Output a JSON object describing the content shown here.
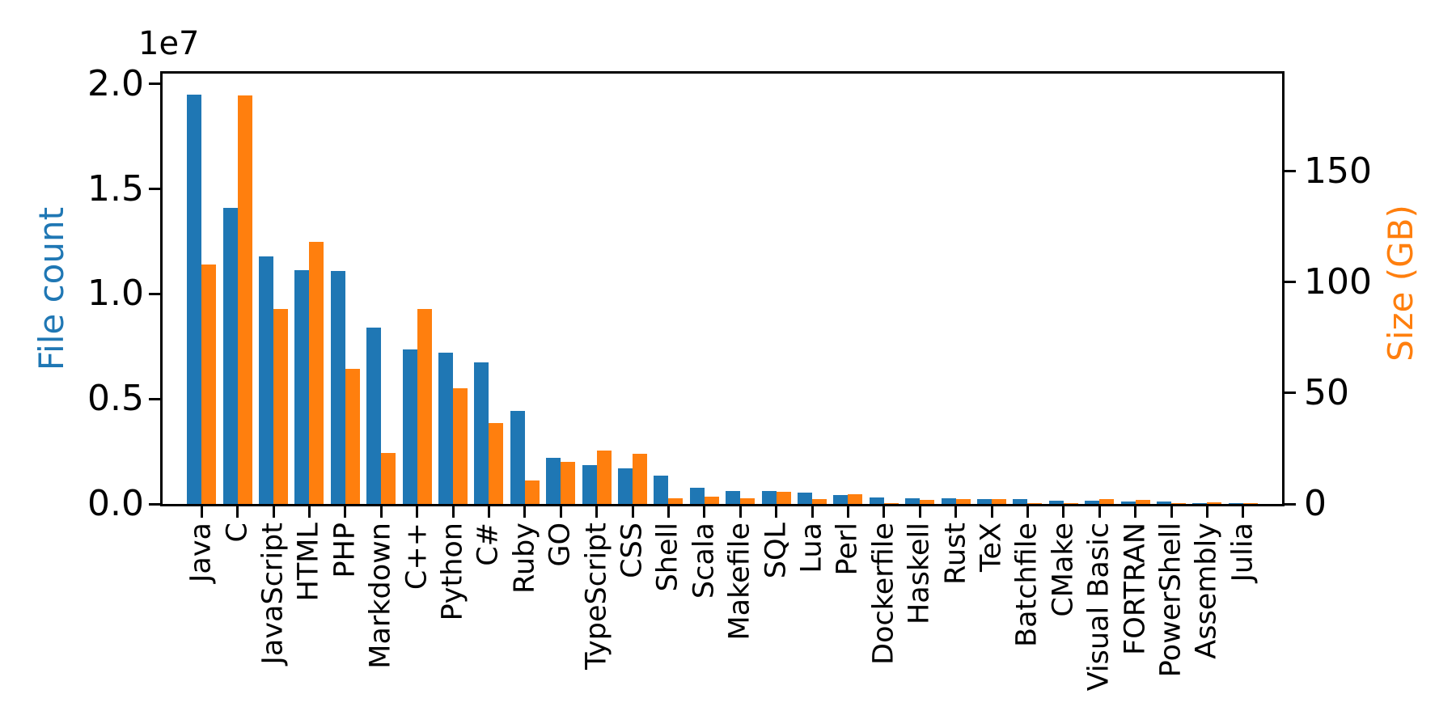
{
  "chart_data": {
    "type": "bar",
    "title": "",
    "description": "Dual-axis grouped bar chart showing file count (blue, left axis) and size in GB (orange, right axis) per programming language",
    "categories": [
      "Java",
      "C",
      "JavaScript",
      "HTML",
      "PHP",
      "Markdown",
      "C++",
      "Python",
      "C#",
      "Ruby",
      "GO",
      "TypeScript",
      "CSS",
      "Shell",
      "Scala",
      "Makefile",
      "SQL",
      "Lua",
      "Perl",
      "Dockerfile",
      "Haskell",
      "Rust",
      "TeX",
      "Batchfile",
      "CMake",
      "Visual Basic",
      "FORTRAN",
      "PowerShell",
      "Assembly",
      "Julia"
    ],
    "series": [
      {
        "name": "File count",
        "axis": "left",
        "values": [
          19500000,
          14100000,
          11800000,
          11150000,
          11100000,
          8400000,
          7350000,
          7200000,
          6760000,
          4430000,
          2200000,
          1860000,
          1690000,
          1340000,
          760000,
          630000,
          620000,
          550000,
          430000,
          320000,
          275000,
          270000,
          225000,
          215000,
          160000,
          155000,
          130000,
          125000,
          50000,
          40000
        ]
      },
      {
        "name": "Size (GB)",
        "axis": "right",
        "values": [
          108,
          184,
          88,
          118,
          61,
          23,
          88,
          52,
          36.5,
          10.5,
          19,
          24,
          22.5,
          2.6,
          3.4,
          2.6,
          5.3,
          2.3,
          4.3,
          0.5,
          1.7,
          2.1,
          2.2,
          0.4,
          0.4,
          2.2,
          1.8,
          0.4,
          0.6,
          0.2
        ]
      }
    ],
    "left_axis": {
      "label": "File count",
      "offset_text": "1e7",
      "ticks": [
        0,
        5000000,
        10000000,
        15000000,
        20000000
      ],
      "tick_labels": [
        "0.0",
        "0.5",
        "1.0",
        "1.5",
        "2.0"
      ],
      "range": [
        0,
        20500000
      ],
      "color": "#1f77b4"
    },
    "right_axis": {
      "label": "Size (GB)",
      "ticks": [
        0,
        50,
        100,
        150
      ],
      "tick_labels": [
        "0",
        "50",
        "100",
        "150"
      ],
      "range": [
        0,
        194
      ],
      "color": "#ff7f0e"
    },
    "grid": false,
    "legend_position": "none",
    "x_tick_label_rotation": 90
  },
  "colors": {
    "bar_file_count": "#1f77b4",
    "bar_size": "#ff7f0e",
    "axis": "#000000",
    "background": "#ffffff"
  }
}
